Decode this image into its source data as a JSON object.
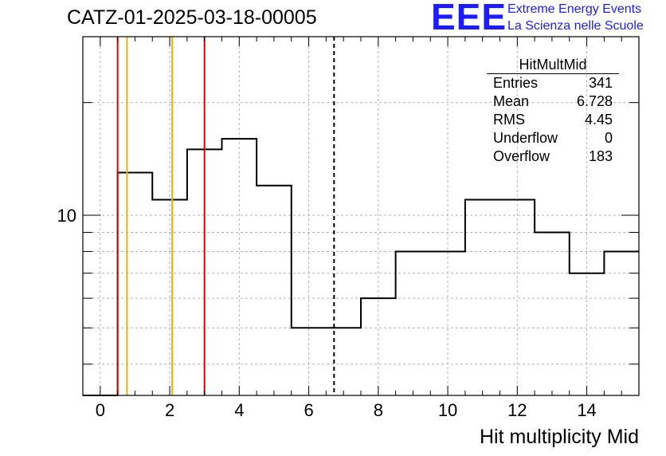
{
  "title": "CATZ-01-2025-03-18-00005",
  "logo": {
    "letters": "EEE",
    "line1": "Extreme Energy Events",
    "line2": "La Scienza nelle Scuole",
    "color": "#1c1cff"
  },
  "stats": {
    "title": "HitMultMid",
    "rows": [
      {
        "label": "Entries",
        "value": "341"
      },
      {
        "label": "Mean",
        "value": "6.728"
      },
      {
        "label": "RMS",
        "value": "4.45"
      },
      {
        "label": "Underflow",
        "value": "0"
      },
      {
        "label": "Overflow",
        "value": "183"
      }
    ]
  },
  "chart_data": {
    "type": "histogram",
    "title": "CATZ-01-2025-03-18-00005",
    "xlabel": "Hit multiplicity Mid",
    "ylabel": "",
    "xlim": [
      -0.5,
      15.5
    ],
    "ylim": [
      3.3,
      30
    ],
    "log_y": true,
    "grid": true,
    "x_ticks": [
      0,
      2,
      4,
      6,
      8,
      10,
      12,
      14
    ],
    "x_tick_labels": [
      "0",
      "2",
      "4",
      "6",
      "8",
      "10",
      "12",
      "14"
    ],
    "y_tick_labels": [
      {
        "value": 10,
        "label": "10"
      }
    ],
    "bins": [
      {
        "low": -0.5,
        "high": 0.5,
        "value": 0
      },
      {
        "low": 0.5,
        "high": 1.5,
        "value": 13
      },
      {
        "low": 1.5,
        "high": 2.5,
        "value": 11
      },
      {
        "low": 2.5,
        "high": 3.5,
        "value": 15
      },
      {
        "low": 3.5,
        "high": 4.5,
        "value": 16
      },
      {
        "low": 4.5,
        "high": 5.5,
        "value": 12
      },
      {
        "low": 5.5,
        "high": 7.5,
        "value": 5
      },
      {
        "low": 7.5,
        "high": 8.5,
        "value": 6
      },
      {
        "low": 8.5,
        "high": 10.5,
        "value": 8
      },
      {
        "low": 10.5,
        "high": 12.5,
        "value": 11
      },
      {
        "low": 12.5,
        "high": 13.5,
        "value": 9
      },
      {
        "low": 13.5,
        "high": 14.5,
        "value": 7
      },
      {
        "low": 14.5,
        "high": 15.5,
        "value": 8
      }
    ],
    "vertical_lines": [
      {
        "x": 0.5,
        "color": "#dd0000",
        "style": "solid"
      },
      {
        "x": 0.77,
        "color": "#f0b000",
        "style": "solid"
      },
      {
        "x": 2.07,
        "color": "#f0b000",
        "style": "solid"
      },
      {
        "x": 3.0,
        "color": "#dd0000",
        "style": "solid"
      },
      {
        "x": 6.728,
        "color": "#000000",
        "style": "dashed"
      }
    ]
  }
}
